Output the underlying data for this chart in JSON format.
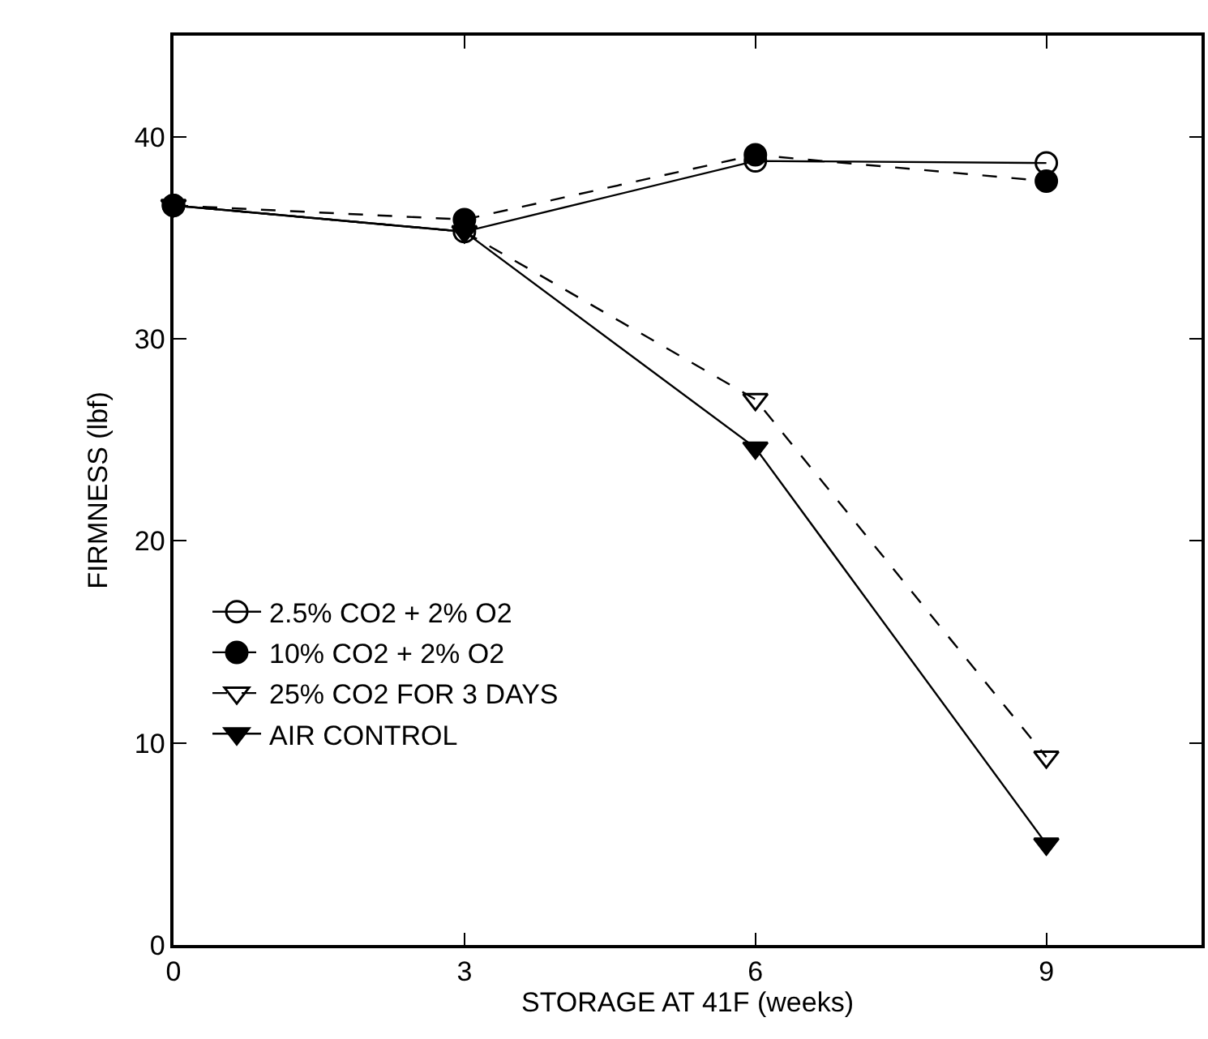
{
  "chart_data": {
    "type": "line",
    "xlabel": "STORAGE AT 41F (weeks)",
    "ylabel": "FIRMNESS (lbf)",
    "x": [
      0,
      3,
      6,
      9
    ],
    "series": [
      {
        "name": "2.5% CO2 + 2% O2",
        "color": "#000000",
        "marker": "circle-open",
        "line_style": "solid",
        "values": [
          36.6,
          35.3,
          38.8,
          38.7
        ]
      },
      {
        "name": "10% CO2 + 2% O2",
        "color": "#000000",
        "marker": "circle",
        "line_style": "dashed",
        "values": [
          36.6,
          35.9,
          39.1,
          37.8
        ]
      },
      {
        "name": "25% CO2 FOR 3 DAYS",
        "color": "#000000",
        "marker": "triangle-down-open",
        "line_style": "dashed",
        "values": [
          36.6,
          35.3,
          27.0,
          9.3
        ]
      },
      {
        "name": "AIR CONTROL",
        "color": "#000000",
        "marker": "triangle-down",
        "line_style": "solid",
        "values": [
          36.6,
          35.3,
          24.6,
          5.0
        ]
      }
    ],
    "xlim": [
      0,
      10.6
    ],
    "xticks": [
      0,
      3,
      6,
      9
    ],
    "ylim": [
      0,
      45
    ],
    "yticks": [
      0,
      10,
      20,
      30,
      40
    ],
    "grid": false,
    "legend": "bottom left"
  }
}
